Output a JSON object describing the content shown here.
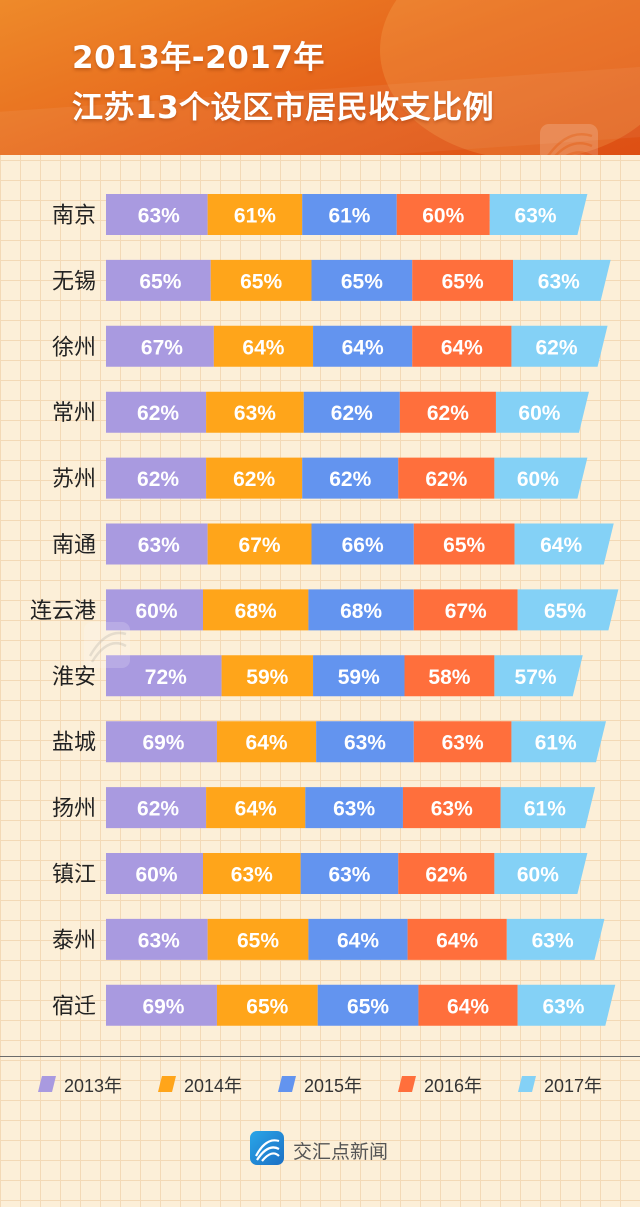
{
  "header": {
    "title_line1": "2013年-2017年",
    "title_line2": "江苏13个设区市居民收支比例"
  },
  "footer": {
    "brand": "交汇点新闻",
    "logo_icon": "jiaohuidian-logo-icon"
  },
  "colors": {
    "2013年": "#a99ae0",
    "2014年": "#ffa51a",
    "2015年": "#6394ef",
    "2016年": "#ff6f3c",
    "2017年": "#84d1f6",
    "header": "#e8681d",
    "background": "#fcefd8"
  },
  "chart_data": {
    "type": "bar",
    "stacked": true,
    "orientation": "horizontal",
    "categories": [
      "南京",
      "无锡",
      "徐州",
      "常州",
      "苏州",
      "南通",
      "连云港",
      "淮安",
      "盐城",
      "扬州",
      "镇江",
      "泰州",
      "宿迁"
    ],
    "series": [
      {
        "name": "2013年",
        "values": [
          63,
          65,
          67,
          62,
          62,
          63,
          60,
          72,
          69,
          62,
          60,
          63,
          69
        ]
      },
      {
        "name": "2014年",
        "values": [
          61,
          65,
          64,
          63,
          62,
          67,
          68,
          59,
          64,
          64,
          63,
          65,
          65
        ]
      },
      {
        "name": "2015年",
        "values": [
          61,
          65,
          64,
          62,
          62,
          66,
          68,
          59,
          63,
          63,
          63,
          64,
          65
        ]
      },
      {
        "name": "2016年",
        "values": [
          60,
          65,
          64,
          62,
          62,
          65,
          67,
          58,
          63,
          63,
          62,
          64,
          64
        ]
      },
      {
        "name": "2017年",
        "values": [
          63,
          63,
          62,
          60,
          60,
          64,
          65,
          57,
          61,
          61,
          60,
          63,
          63
        ]
      }
    ],
    "value_suffix": "%",
    "legend_position": "bottom",
    "grid": true
  }
}
